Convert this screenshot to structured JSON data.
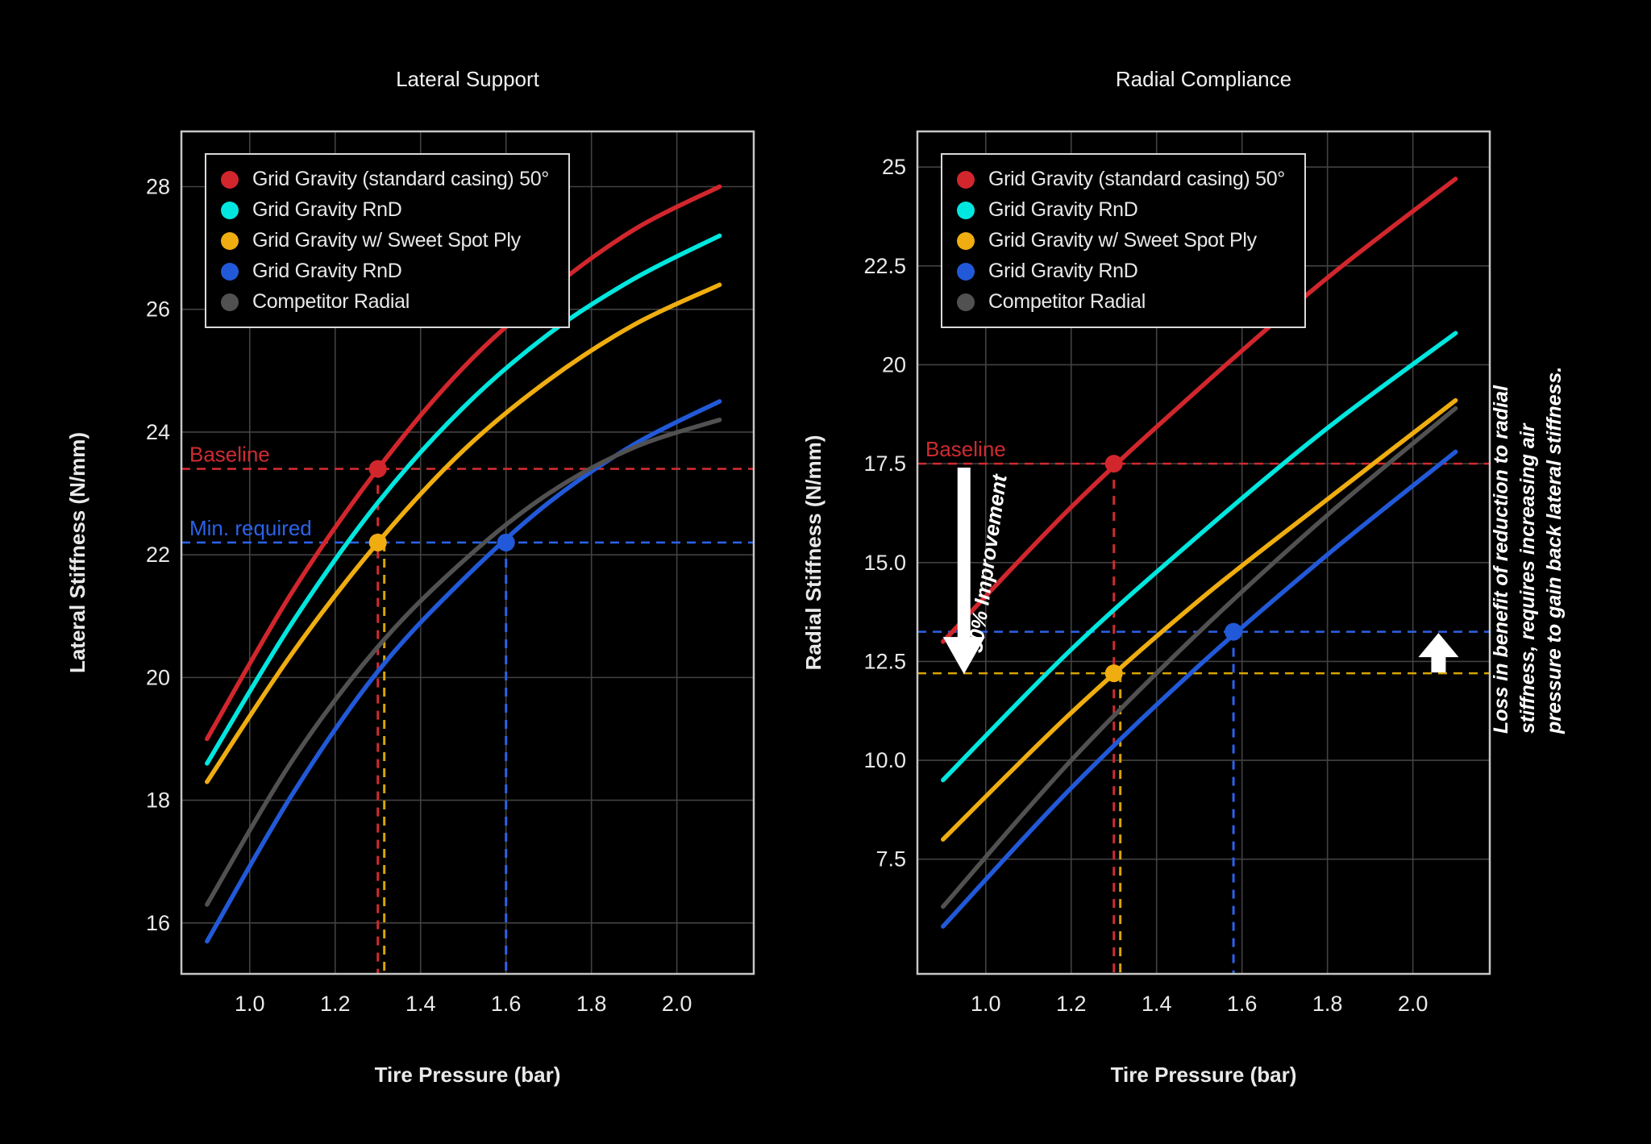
{
  "figure": {
    "background": "#000000",
    "text_color": "#e9e9e9",
    "grid_color": "#424242",
    "spine_color": "#c6c6c6",
    "annotation_color": "#ffffff"
  },
  "legend": {
    "position": "upper-left",
    "items": [
      {
        "label": "Grid Gravity (standard casing) 50°",
        "color": "#d2262d"
      },
      {
        "label": "Grid Gravity RnD",
        "color": "#00e7df"
      },
      {
        "label": "Grid Gravity w/ Sweet Spot Ply",
        "color": "#efad10"
      },
      {
        "label": "Grid Gravity RnD",
        "color": "#2159d8"
      },
      {
        "label": "Competitor Radial",
        "color": "#515151"
      }
    ]
  },
  "chart_data": [
    {
      "type": "line",
      "title": "Lateral Support",
      "xlabel": "Tire Pressure (bar)",
      "ylabel": "Lateral Stiffness (N/mm)",
      "xlim": [
        0.84,
        2.18
      ],
      "ylim": [
        15.17,
        28.9
      ],
      "grid": true,
      "xticks": [
        {
          "v": 1.0,
          "label": "1.0"
        },
        {
          "v": 1.2,
          "label": "1.2"
        },
        {
          "v": 1.4,
          "label": "1.4"
        },
        {
          "v": 1.6,
          "label": "1.6"
        },
        {
          "v": 1.8,
          "label": "1.8"
        },
        {
          "v": 2.0,
          "label": "2.0"
        }
      ],
      "yticks": [
        {
          "v": 16,
          "label": "16"
        },
        {
          "v": 18,
          "label": "18"
        },
        {
          "v": 20,
          "label": "20"
        },
        {
          "v": 22,
          "label": "22"
        },
        {
          "v": 24,
          "label": "24"
        },
        {
          "v": 26,
          "label": "26"
        },
        {
          "v": 28,
          "label": "28"
        }
      ],
      "x": [
        0.9,
        1.1,
        1.3,
        1.5,
        1.7,
        1.9,
        2.1
      ],
      "series": [
        {
          "name": "Grid Gravity (standard casing) 50°",
          "color": "#d2262d",
          "y": [
            19.0,
            21.4,
            23.4,
            25.05,
            26.3,
            27.3,
            28.0
          ]
        },
        {
          "name": "Grid Gravity RnD",
          "color": "#00e7df",
          "y": [
            18.6,
            20.9,
            22.85,
            24.4,
            25.6,
            26.5,
            27.2
          ]
        },
        {
          "name": "Grid Gravity w/ Sweet Spot Ply",
          "color": "#efad10",
          "y": [
            18.3,
            20.4,
            22.2,
            23.7,
            24.85,
            25.75,
            26.4
          ]
        },
        {
          "name": "Grid Gravity RnD",
          "color": "#2159d8",
          "y": [
            15.7,
            18.1,
            20.1,
            21.6,
            22.85,
            23.8,
            24.5
          ]
        },
        {
          "name": "Competitor Radial",
          "color": "#515151",
          "y": [
            16.3,
            18.65,
            20.5,
            21.9,
            23.0,
            23.75,
            24.2
          ]
        }
      ],
      "markers": [
        {
          "x": 1.3,
          "y": 23.4,
          "color": "#d2262d"
        },
        {
          "x": 1.3,
          "y": 22.2,
          "color": "#efad10"
        },
        {
          "x": 1.6,
          "y": 22.2,
          "color": "#2159d8"
        }
      ],
      "hlines": [
        {
          "y": 23.4,
          "color": "#cf2b30",
          "label": "Baseline"
        },
        {
          "y": 22.2,
          "color": "#2b62e8",
          "label": "Min. required"
        }
      ],
      "vlines": [
        {
          "x": 1.3,
          "to": 23.4,
          "color": "#cf2b30"
        },
        {
          "x": 1.315,
          "to": 22.2,
          "color": "#d9a400"
        },
        {
          "x": 1.6,
          "to": 22.2,
          "color": "#2b62e8"
        }
      ],
      "annotations": {}
    },
    {
      "type": "line",
      "title": "Radial Compliance",
      "xlabel": "Tire Pressure (bar)",
      "ylabel": "Radial Stiffness (N/mm)",
      "xlim": [
        0.84,
        2.18
      ],
      "ylim": [
        4.6,
        25.9
      ],
      "grid": true,
      "xticks": [
        {
          "v": 1.0,
          "label": "1.0"
        },
        {
          "v": 1.2,
          "label": "1.2"
        },
        {
          "v": 1.4,
          "label": "1.4"
        },
        {
          "v": 1.6,
          "label": "1.6"
        },
        {
          "v": 1.8,
          "label": "1.8"
        },
        {
          "v": 2.0,
          "label": "2.0"
        }
      ],
      "yticks": [
        {
          "v": 7.5,
          "label": "7.5"
        },
        {
          "v": 10,
          "label": "10.0"
        },
        {
          "v": 12.5,
          "label": "12.5"
        },
        {
          "v": 15,
          "label": "15.0"
        },
        {
          "v": 17.5,
          "label": "17.5"
        },
        {
          "v": 20,
          "label": "20"
        },
        {
          "v": 22.5,
          "label": "22.5"
        },
        {
          "v": 25,
          "label": "25"
        }
      ],
      "x": [
        0.9,
        1.2,
        1.5,
        1.8,
        2.1
      ],
      "series": [
        {
          "name": "Grid Gravity (standard casing) 50°",
          "color": "#d2262d",
          "y": [
            13.0,
            16.4,
            19.4,
            22.2,
            24.7
          ]
        },
        {
          "name": "Grid Gravity RnD",
          "color": "#00e7df",
          "y": [
            9.5,
            12.8,
            15.7,
            18.4,
            20.8
          ]
        },
        {
          "name": "Grid Gravity w/ Sweet Spot Ply",
          "color": "#efad10",
          "y": [
            8.0,
            11.2,
            14.05,
            16.6,
            19.1
          ]
        },
        {
          "name": "Grid Gravity RnD",
          "color": "#2159d8",
          "y": [
            5.8,
            9.3,
            12.4,
            15.2,
            17.8
          ]
        },
        {
          "name": "Competitor Radial",
          "color": "#515151",
          "y": [
            6.3,
            10.0,
            13.25,
            16.2,
            18.9
          ]
        }
      ],
      "markers": [
        {
          "x": 1.3,
          "y": 17.5,
          "color": "#d2262d"
        },
        {
          "x": 1.3,
          "y": 12.2,
          "color": "#efad10"
        },
        {
          "x": 1.58,
          "y": 13.25,
          "color": "#2159d8"
        }
      ],
      "hlines": [
        {
          "y": 17.5,
          "color": "#cf2b30",
          "label": "Baseline"
        },
        {
          "y": 13.25,
          "color": "#2b62e8",
          "label": ""
        },
        {
          "y": 12.2,
          "color": "#d9a400",
          "label": ""
        }
      ],
      "vlines": [
        {
          "x": 1.3,
          "to": 17.5,
          "color": "#cf2b30"
        },
        {
          "x": 1.315,
          "to": 12.2,
          "color": "#d9a400"
        },
        {
          "x": 1.58,
          "to": 13.25,
          "color": "#2b62e8"
        }
      ],
      "annotations": {
        "arrows": [
          {
            "x": 0.949,
            "from": 17.4,
            "to": 12.18,
            "dir": "down",
            "shaft_w": 16,
            "head_w": 52,
            "head_h": 46
          },
          {
            "x": 2.06,
            "from": 12.22,
            "to": 13.22,
            "dir": "up",
            "shaft_w": 18,
            "head_w": 50,
            "head_h": 30
          }
        ],
        "rotated_label": {
          "text": "30% Improvement",
          "x": 1.02,
          "y": 14.95,
          "angle": -82
        },
        "side_caption": {
          "text": "Loss in benefit of reduction to radial\nstiffness, requires increasing air\npressure to gain back lateral stiffness."
        }
      }
    }
  ]
}
